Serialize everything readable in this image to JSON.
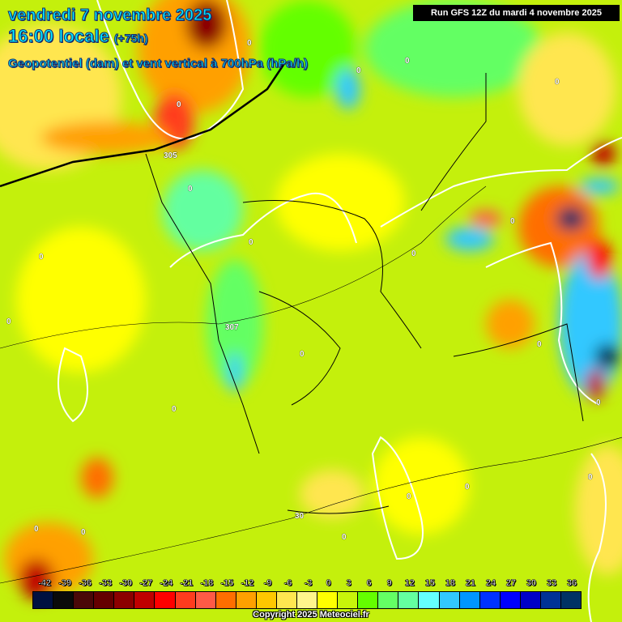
{
  "header": {
    "date": "vendredi 7 novembre 2025",
    "time": "16:00 locale",
    "lead": "(+75h)",
    "parameter": "Geopotentiel (dam) et vent vertical à 700hPa (hPa/h)",
    "run": "Run GFS 12Z du mardi 4 novembre 2025"
  },
  "contour_labels": {
    "geopotential": [
      "305",
      "307",
      "307",
      "30"
    ],
    "vertical_wind": "0"
  },
  "legend": {
    "unit": "hPa/h",
    "ticks": [
      "-42",
      "-39",
      "-36",
      "-33",
      "-30",
      "-27",
      "-24",
      "-21",
      "-18",
      "-15",
      "-12",
      "-9",
      "-6",
      "-3",
      "0",
      "3",
      "6",
      "9",
      "12",
      "15",
      "18",
      "21",
      "24",
      "27",
      "30",
      "33",
      "36"
    ],
    "colors": [
      "#001040",
      "#0a0a0a",
      "#4a0808",
      "#640000",
      "#8c0000",
      "#c00000",
      "#ff0000",
      "#ff3c1e",
      "#ff5a46",
      "#ff6e00",
      "#ffa000",
      "#ffc800",
      "#ffe650",
      "#fff58c",
      "#ffff00",
      "#c8f50a",
      "#64ff00",
      "#64ff64",
      "#64ffa0",
      "#64ffff",
      "#32c8ff",
      "#0096ff",
      "#0032ff",
      "#0000ff",
      "#0000c8",
      "#003296",
      "#003264"
    ]
  },
  "copyright": "Copyright 2025 Meteociel.fr"
}
